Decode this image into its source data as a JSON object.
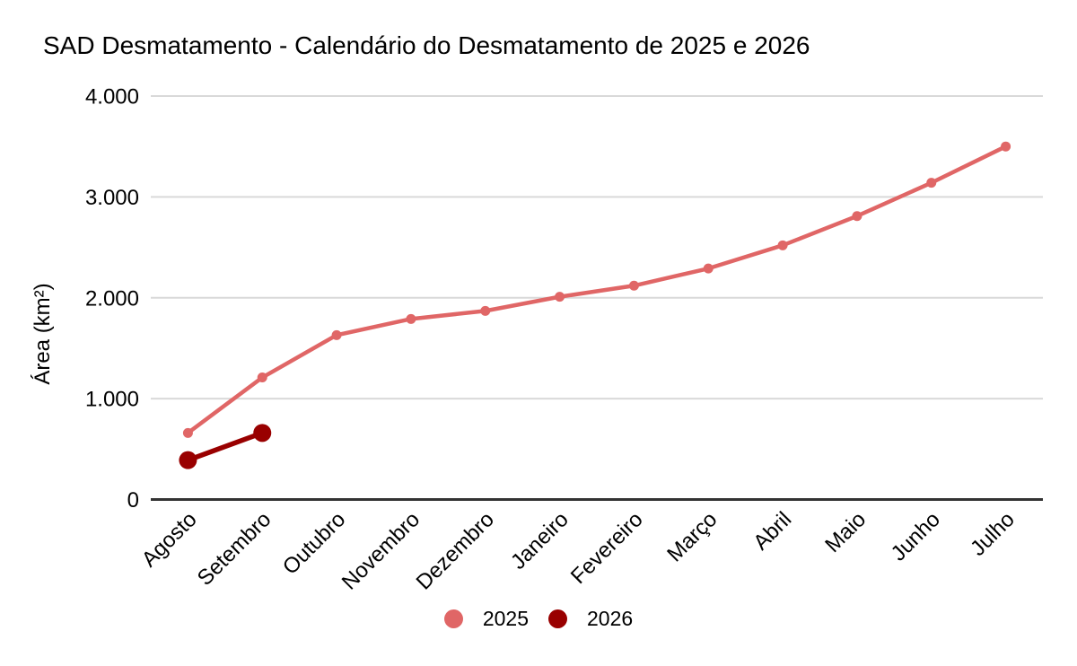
{
  "colors": {
    "background": "#ffffff",
    "grid": "#d9d9d9",
    "axis": "#333333",
    "text": "#000000",
    "series_2025": "#e06666",
    "series_2026": "#990000"
  },
  "chart_data": {
    "type": "line",
    "title": "SAD Desmatamento - Calendário do Desmatamento de 2025 e 2026",
    "xlabel": "",
    "ylabel": "Área (km²)",
    "categories": [
      "Agosto",
      "Setembro",
      "Outubro",
      "Novembro",
      "Dezembro",
      "Janeiro",
      "Fevereiro",
      "Março",
      "Abril",
      "Maio",
      "Junho",
      "Julho"
    ],
    "series": [
      {
        "name": "2025",
        "color": "#e06666",
        "line_width": 4.5,
        "point_radius": 5.5,
        "values": [
          660,
          1210,
          1630,
          1790,
          1870,
          2010,
          2120,
          2290,
          2520,
          2810,
          3140,
          3500
        ]
      },
      {
        "name": "2026",
        "color": "#990000",
        "line_width": 5.5,
        "point_radius": 10,
        "values": [
          390,
          660
        ]
      }
    ],
    "ylim": [
      0,
      4000
    ],
    "yticks": [
      0,
      1000,
      2000,
      3000,
      4000
    ],
    "ytick_labels": [
      "0",
      "1.000",
      "2.000",
      "3.000",
      "4.000"
    ],
    "grid": true,
    "x_label_rotation": -45,
    "legend_position": "bottom"
  }
}
